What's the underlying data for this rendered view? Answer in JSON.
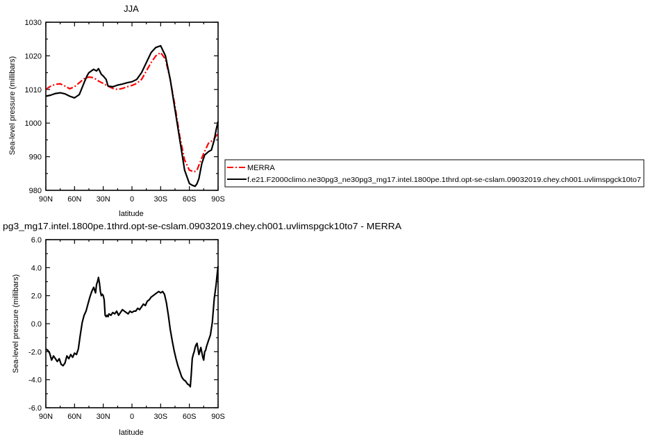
{
  "chart_data": [
    {
      "type": "line",
      "title": "JJA",
      "xlabel": "latitude",
      "ylabel": "Sea-level pressure (millibars)",
      "xlim": [
        90,
        -90
      ],
      "ylim": [
        980,
        1030
      ],
      "x_ticks": [
        90,
        60,
        30,
        0,
        -30,
        -60,
        -90
      ],
      "x_tick_labels": [
        "90N",
        "60N",
        "30N",
        "0",
        "30S",
        "60S",
        "90S"
      ],
      "y_ticks": [
        980,
        990,
        1000,
        1010,
        1020,
        1030
      ],
      "y_tick_labels": [
        "980",
        "990",
        "1000",
        "1010",
        "1020",
        "1030"
      ],
      "grid": false,
      "legend_position": "right, outside plot",
      "series": [
        {
          "name": "MERRA",
          "color": "#ff0000",
          "style": "dash-dot",
          "x": [
            90,
            85,
            80,
            75,
            70,
            65,
            60,
            55,
            50,
            45,
            40,
            35,
            30,
            25,
            20,
            15,
            10,
            5,
            0,
            -5,
            -10,
            -15,
            -20,
            -25,
            -30,
            -35,
            -40,
            -45,
            -50,
            -55,
            -60,
            -65,
            -68,
            -70,
            -75,
            -80,
            -85,
            -90
          ],
          "y": [
            1010.0,
            1011.0,
            1011.5,
            1011.7,
            1011.0,
            1010.2,
            1010.8,
            1012.0,
            1013.2,
            1013.7,
            1013.5,
            1012.5,
            1011.8,
            1011.0,
            1010.3,
            1010.0,
            1010.3,
            1010.8,
            1011.2,
            1011.8,
            1013.0,
            1015.5,
            1018.0,
            1020.0,
            1021.0,
            1019.0,
            1013.0,
            1005.0,
            996.0,
            989.0,
            986.0,
            985.5,
            986.0,
            987.5,
            991.0,
            994.0,
            995.0,
            997.0
          ]
        },
        {
          "name": "f.e21.F2000climo.ne30pg3_ne30pg3_mg17.intel.1800pe.1thrd.opt-se-cslam.09032019.chey.ch001.uvlimspgck10to7",
          "color": "#000000",
          "style": "solid",
          "x": [
            90,
            85,
            80,
            75,
            70,
            65,
            60,
            55,
            50,
            47,
            45,
            42,
            40,
            37,
            35,
            32,
            30,
            27,
            25,
            20,
            15,
            10,
            5,
            0,
            -5,
            -10,
            -15,
            -20,
            -25,
            -30,
            -35,
            -40,
            -45,
            -50,
            -55,
            -60,
            -63,
            -66,
            -68,
            -70,
            -73,
            -76,
            -80,
            -83,
            -86,
            -88,
            -90
          ],
          "y": [
            1008.0,
            1008.3,
            1008.8,
            1009.0,
            1008.7,
            1008.0,
            1007.5,
            1008.5,
            1012.0,
            1014.0,
            1015.0,
            1015.6,
            1016.0,
            1015.5,
            1016.2,
            1014.5,
            1014.0,
            1013.0,
            1011.0,
            1010.8,
            1011.3,
            1011.6,
            1012.0,
            1012.3,
            1013.0,
            1015.0,
            1018.0,
            1021.0,
            1022.5,
            1023.0,
            1020.0,
            1013.0,
            1004.0,
            995.0,
            986.0,
            982.0,
            981.5,
            981.2,
            982.0,
            983.5,
            988.0,
            990.5,
            991.5,
            992.0,
            995.0,
            998.0,
            1000.5
          ]
        }
      ]
    },
    {
      "type": "line",
      "title": "pg3_mg17.intel.1800pe.1thrd.opt-se-cslam.09032019.chey.ch001.uvlimspgck10to7 - MERRA",
      "xlabel": "latitude",
      "ylabel": "Sea-level pressure (millibars)",
      "xlim": [
        90,
        -90
      ],
      "ylim": [
        -6.0,
        6.0
      ],
      "x_ticks": [
        90,
        60,
        30,
        0,
        -30,
        -60,
        -90
      ],
      "x_tick_labels": [
        "90N",
        "60N",
        "30N",
        "0",
        "30S",
        "60S",
        "90S"
      ],
      "y_ticks": [
        -6,
        -4,
        -2,
        0,
        2,
        4,
        6
      ],
      "y_tick_labels": [
        "-6.0",
        "-4.0",
        "-2.0",
        "0.0",
        "2.0",
        "4.0",
        "6.0"
      ],
      "grid": false,
      "series": [
        {
          "color": "#000000",
          "style": "solid",
          "x": [
            90,
            88,
            86,
            84,
            82,
            80,
            78,
            76,
            74,
            72,
            70,
            68,
            66,
            64,
            62,
            60,
            58,
            56,
            54,
            52,
            50,
            48,
            46,
            44,
            42,
            40,
            38,
            37,
            36,
            35,
            34,
            33,
            32,
            31,
            30,
            29,
            28,
            27,
            26,
            25,
            24,
            22,
            20,
            18,
            16,
            14,
            12,
            10,
            8,
            6,
            4,
            2,
            0,
            -2,
            -4,
            -6,
            -8,
            -10,
            -12,
            -14,
            -16,
            -18,
            -20,
            -22,
            -24,
            -26,
            -28,
            -30,
            -32,
            -34,
            -36,
            -38,
            -40,
            -42,
            -44,
            -46,
            -48,
            -50,
            -52,
            -54,
            -56,
            -58,
            -60,
            -61,
            -62,
            -63,
            -64,
            -65,
            -66,
            -67,
            -68,
            -70,
            -72,
            -74,
            -75,
            -76,
            -77,
            -78,
            -80,
            -82,
            -84,
            -86,
            -88,
            -89,
            -90
          ],
          "y": [
            -1.8,
            -1.9,
            -2.1,
            -2.6,
            -2.3,
            -2.5,
            -2.7,
            -2.5,
            -2.9,
            -3.0,
            -2.8,
            -2.3,
            -2.5,
            -2.2,
            -2.4,
            -2.1,
            -2.2,
            -1.8,
            -0.8,
            0.1,
            0.6,
            0.9,
            1.4,
            1.9,
            2.3,
            2.6,
            2.2,
            2.8,
            3.0,
            3.3,
            2.9,
            2.3,
            2.0,
            2.1,
            2.0,
            1.7,
            0.6,
            0.5,
            0.6,
            0.5,
            0.7,
            0.6,
            0.8,
            0.7,
            0.9,
            0.6,
            0.8,
            1.0,
            0.9,
            0.8,
            0.7,
            0.9,
            0.8,
            0.9,
            0.9,
            1.1,
            1.0,
            1.2,
            1.4,
            1.3,
            1.6,
            1.7,
            1.9,
            2.0,
            2.1,
            2.2,
            2.3,
            2.2,
            2.3,
            2.1,
            1.5,
            0.6,
            -0.4,
            -1.2,
            -1.9,
            -2.5,
            -3.0,
            -3.4,
            -3.8,
            -4.0,
            -4.1,
            -4.3,
            -4.4,
            -4.5,
            -3.6,
            -2.5,
            -2.2,
            -2.0,
            -1.7,
            -1.5,
            -1.4,
            -2.2,
            -1.7,
            -2.4,
            -2.6,
            -2.0,
            -1.9,
            -1.6,
            -1.2,
            -0.8,
            0.1,
            1.8,
            2.8,
            3.5,
            4.1
          ]
        }
      ]
    }
  ]
}
